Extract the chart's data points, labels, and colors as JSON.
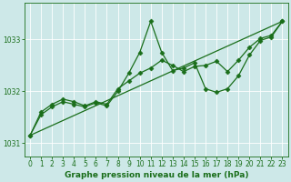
{
  "title": "Graphe pression niveau de la mer (hPa)",
  "bg_color": "#cde8e8",
  "grid_color": "#b0d8d8",
  "line_color": "#1a6e1a",
  "xlim": [
    -0.5,
    23.5
  ],
  "ylim": [
    1030.75,
    1033.7
  ],
  "yticks": [
    1031,
    1032,
    1033
  ],
  "xticks": [
    0,
    1,
    2,
    3,
    4,
    5,
    6,
    7,
    8,
    9,
    10,
    11,
    12,
    13,
    14,
    15,
    16,
    17,
    18,
    19,
    20,
    21,
    22,
    23
  ],
  "series": [
    {
      "x": [
        0,
        1,
        2,
        3,
        4,
        5,
        6,
        7,
        8,
        9,
        10,
        11,
        12,
        13,
        14,
        15,
        16,
        17,
        18,
        19,
        20,
        21,
        22,
        23
      ],
      "y": [
        1031.15,
        1031.55,
        1031.7,
        1031.8,
        1031.75,
        1031.7,
        1031.78,
        1031.72,
        1032.0,
        1032.35,
        1032.75,
        1033.35,
        1032.75,
        1032.4,
        1032.45,
        1032.55,
        1032.05,
        1031.98,
        1032.05,
        1032.3,
        1032.7,
        1032.98,
        1033.05,
        1033.35
      ],
      "linestyle": "-",
      "marker": "D",
      "markersize": 2.5,
      "linewidth": 0.9
    },
    {
      "x": [
        0,
        1,
        2,
        3,
        4,
        5,
        6,
        7,
        8,
        9,
        10,
        11,
        12,
        13,
        14,
        15,
        16,
        17,
        18,
        19,
        20,
        21,
        22,
        23
      ],
      "y": [
        1031.15,
        1031.6,
        1031.75,
        1031.85,
        1031.8,
        1031.72,
        1031.8,
        1031.75,
        1032.05,
        1032.2,
        1032.35,
        1032.45,
        1032.6,
        1032.5,
        1032.38,
        1032.48,
        1032.5,
        1032.58,
        1032.38,
        1032.6,
        1032.85,
        1033.02,
        1033.08,
        1033.35
      ],
      "linestyle": "-",
      "marker": "D",
      "markersize": 2.5,
      "linewidth": 0.9
    },
    {
      "x": [
        0,
        23
      ],
      "y": [
        1031.15,
        1033.35
      ],
      "linestyle": "-",
      "marker": "none",
      "markersize": 0,
      "linewidth": 0.9
    }
  ],
  "tick_fontsize": 5.5,
  "label_fontsize": 6.5
}
